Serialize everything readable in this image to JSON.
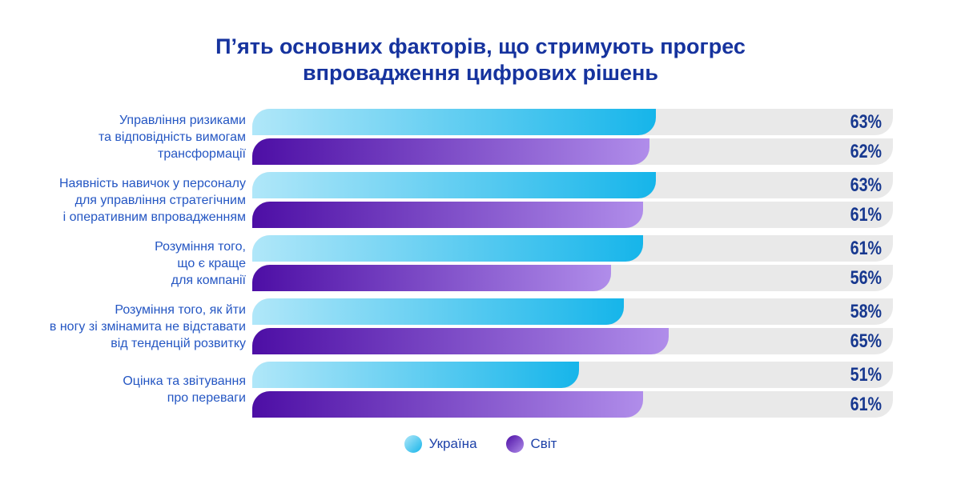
{
  "title": {
    "line1": "П’ять основних факторів, що стримують прогрес",
    "line2": "впровадження цифрових рішень"
  },
  "legend": {
    "items": [
      {
        "label": "Україна",
        "key": "ukraine"
      },
      {
        "label": "Світ",
        "key": "world"
      }
    ]
  },
  "colors": {
    "title_text": "#16339e",
    "category_text": "#2456c3",
    "value_text": "#17388f",
    "track": "#e9e9e9",
    "ukraine_gradient_start": "#b0e7f9",
    "ukraine_gradient_end": "#16b5ea",
    "world_gradient_start": "#4d0ea5",
    "world_gradient_end": "#b08dea",
    "background": "#ffffff"
  },
  "chart_data": {
    "type": "bar",
    "orientation": "horizontal",
    "title": "П’ять основних факторів, що стримують прогрес впровадження цифрових рішень",
    "value_unit": "%",
    "axis_range": [
      0,
      100
    ],
    "grid": false,
    "legend_position": "bottom",
    "categories": [
      "Управління ризиками та відповідність вимогам трансформації",
      "Наявність навичок у персоналу для управління стратегічним і оперативним впровадженням",
      "Розуміння того, що є краще для компанії",
      "Розуміння того, як йти в ногу зі змінамита не відставати від тенденцій розвитку",
      "Оцінка та звітування про переваги"
    ],
    "category_lines": [
      [
        "Управління ризиками",
        "та відповідність вимогам",
        "трансформації"
      ],
      [
        "Наявність навичок у персоналу",
        "для управління стратегічним",
        "і оперативним впровадженням"
      ],
      [
        "Розуміння того,",
        "що є краще",
        "для компанії"
      ],
      [
        "Розуміння того, як йти",
        "в ногу зі змінамита не відставати",
        "від тенденцій розвитку"
      ],
      [
        "Оцінка та звітування",
        "про переваги"
      ]
    ],
    "series": [
      {
        "name": "Україна",
        "key": "ukraine",
        "values": [
          63,
          63,
          61,
          58,
          51
        ]
      },
      {
        "name": "Світ",
        "key": "world",
        "values": [
          62,
          61,
          56,
          65,
          61
        ]
      }
    ]
  }
}
